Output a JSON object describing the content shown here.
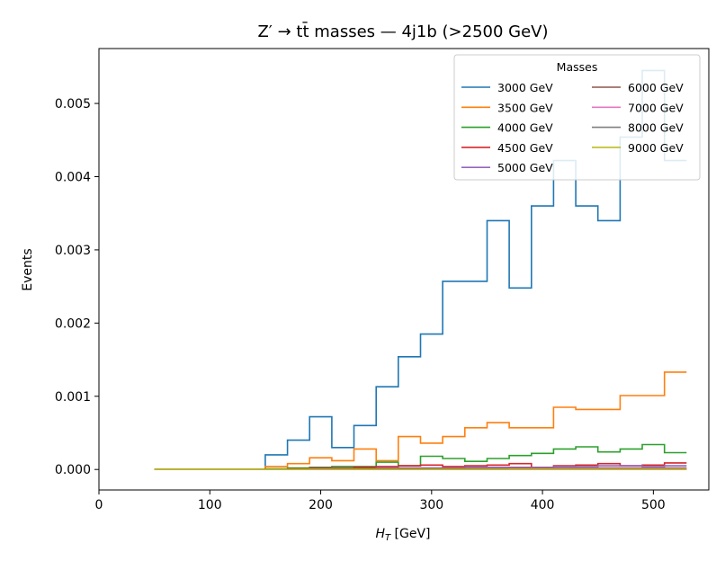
{
  "chart_data": {
    "type": "line",
    "title": "Z′ → tt̄ masses — 4j1b (>2500 GeV)",
    "xlabel": "H_T [GeV]",
    "ylabel": "Events",
    "xlim": [
      0,
      550
    ],
    "ylim": [
      -0.00028,
      0.00575
    ],
    "xticks": [
      "0",
      "100",
      "200",
      "300",
      "400",
      "500"
    ],
    "xtick_values": [
      0,
      100,
      200,
      300,
      400,
      500
    ],
    "yticks": [
      "0.000",
      "0.001",
      "0.002",
      "0.003",
      "0.004",
      "0.005"
    ],
    "ytick_values": [
      0,
      0.001,
      0.002,
      0.003,
      0.004,
      0.005
    ],
    "grid": false,
    "legend": {
      "title": "Masses",
      "placement": "top-right",
      "columns": 2
    },
    "bin_edges": [
      50,
      70,
      90,
      110,
      130,
      150,
      170,
      190,
      210,
      230,
      250,
      270,
      290,
      310,
      330,
      350,
      370,
      390,
      410,
      430,
      450,
      470,
      490,
      510,
      530
    ],
    "series": [
      {
        "name": "3000 GeV",
        "color": "#1f77b4",
        "values": [
          0,
          0,
          0,
          0,
          0,
          0.0002,
          0.0004,
          0.00072,
          0.0003,
          0.0006,
          0.00113,
          0.00154,
          0.00185,
          0.00257,
          0.00257,
          0.0034,
          0.00248,
          0.0036,
          0.00422,
          0.0036,
          0.0034,
          0.00454,
          0.00545,
          0.00422
        ]
      },
      {
        "name": "3500 GeV",
        "color": "#ff7f0e",
        "values": [
          0,
          0,
          0,
          0,
          0,
          4e-05,
          8e-05,
          0.00016,
          0.00012,
          0.00028,
          0.00012,
          0.00045,
          0.00036,
          0.00045,
          0.00057,
          0.00064,
          0.00057,
          0.00057,
          0.00085,
          0.00082,
          0.00082,
          0.00101,
          0.00101,
          0.00133
        ]
      },
      {
        "name": "4000 GeV",
        "color": "#2ca02c",
        "values": [
          0,
          0,
          0,
          0,
          0,
          1e-05,
          2e-05,
          3e-05,
          4e-05,
          4e-05,
          0.0001,
          5e-05,
          0.00018,
          0.00015,
          0.00011,
          0.00015,
          0.00019,
          0.00022,
          0.00028,
          0.00031,
          0.00024,
          0.00028,
          0.00034,
          0.00023
        ]
      },
      {
        "name": "4500 GeV",
        "color": "#d62728",
        "values": [
          0,
          0,
          0,
          0,
          0,
          0,
          1e-05,
          2e-05,
          2e-05,
          3e-05,
          4e-05,
          5e-05,
          6e-05,
          4e-05,
          5e-05,
          6e-05,
          8e-05,
          2e-05,
          5e-05,
          6e-05,
          8e-05,
          5e-05,
          6e-05,
          9e-05
        ]
      },
      {
        "name": "5000 GeV",
        "color": "#9467bd",
        "values": [
          0,
          0,
          0,
          0,
          0,
          0,
          0,
          1e-05,
          1e-05,
          1e-05,
          2e-05,
          2e-05,
          2e-05,
          2e-05,
          3e-05,
          3e-05,
          3e-05,
          3e-05,
          4e-05,
          4e-05,
          5e-05,
          5e-05,
          4e-05,
          5e-05
        ]
      },
      {
        "name": "6000 GeV",
        "color": "#8c564b",
        "values": [
          0,
          0,
          0,
          0,
          0,
          0,
          0,
          0,
          0,
          1e-05,
          1e-05,
          1e-05,
          1e-05,
          1e-05,
          1e-05,
          1e-05,
          2e-05,
          2e-05,
          2e-05,
          2e-05,
          2e-05,
          2e-05,
          2e-05,
          2e-05
        ]
      },
      {
        "name": "7000 GeV",
        "color": "#e377c2",
        "values": [
          0,
          0,
          0,
          0,
          0,
          0,
          0,
          0,
          0,
          0,
          0,
          0,
          0,
          0,
          0,
          0,
          1e-05,
          1e-05,
          1e-05,
          1e-05,
          1e-05,
          1e-05,
          1e-05,
          1e-05
        ]
      },
      {
        "name": "8000 GeV",
        "color": "#7f7f7f",
        "values": [
          0,
          0,
          0,
          0,
          0,
          0,
          0,
          0,
          0,
          0,
          0,
          0,
          0,
          0,
          0,
          0,
          0,
          0,
          0,
          0,
          0,
          0,
          0,
          0
        ]
      },
      {
        "name": "9000 GeV",
        "color": "#bcbd22",
        "values": [
          0,
          0,
          0,
          0,
          0,
          0,
          0,
          0,
          0,
          0,
          0,
          0,
          0,
          0,
          0,
          0,
          0,
          0,
          0,
          0,
          0,
          0,
          0,
          0
        ]
      }
    ]
  }
}
